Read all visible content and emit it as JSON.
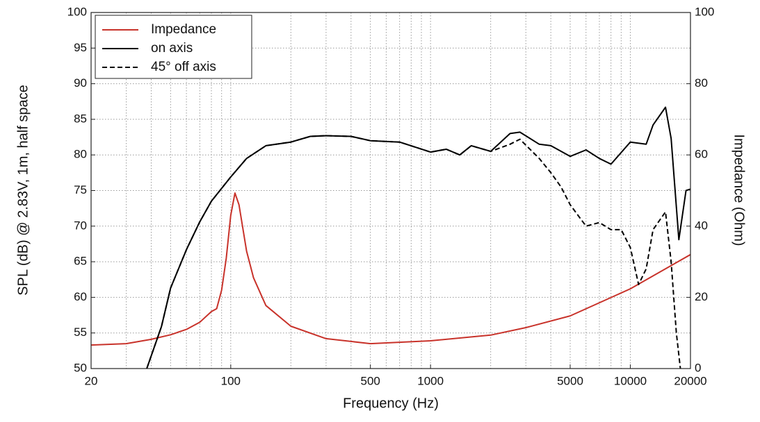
{
  "chart_data": {
    "type": "line",
    "x_label": "Frequency (Hz)",
    "y_label": "SPL (dB) @ 2.83V, 1m, half space",
    "y2_label": "Impedance (Ohm)",
    "x_scale": "log",
    "grid": true,
    "legend": "upper left",
    "xlim": [
      20,
      20000
    ],
    "xticks": [
      20,
      100,
      500,
      1000,
      5000,
      10000,
      20000
    ],
    "xminorticks": [
      30,
      40,
      50,
      60,
      70,
      80,
      90,
      200,
      300,
      400,
      600,
      700,
      800,
      900,
      2000,
      3000,
      4000,
      6000,
      7000,
      8000,
      9000
    ],
    "ylim": [
      50,
      100
    ],
    "yticks": [
      50,
      55,
      60,
      65,
      70,
      75,
      80,
      85,
      90,
      95,
      100
    ],
    "y2lim": [
      0,
      100
    ],
    "y2ticks": [
      0,
      20,
      40,
      60,
      80,
      100
    ],
    "series": [
      {
        "name": "Impedance",
        "color": "#c8322a",
        "dash": "solid",
        "axis": "y2",
        "x": [
          20,
          30,
          40,
          50,
          60,
          70,
          80,
          85,
          90,
          95,
          100,
          105,
          110,
          120,
          130,
          150,
          200,
          300,
          500,
          1000,
          2000,
          3000,
          5000,
          10000,
          20000
        ],
        "values": [
          6.6,
          7,
          8.2,
          9.5,
          11,
          13,
          16,
          16.8,
          22,
          31,
          43,
          49.3,
          46,
          33,
          25.5,
          17.7,
          11.9,
          8.4,
          7,
          7.8,
          9.4,
          11.5,
          14.8,
          22.4,
          32
        ]
      },
      {
        "name": "on axis",
        "color": "#000000",
        "dash": "solid",
        "axis": "y",
        "x": [
          38,
          45,
          50,
          60,
          70,
          80,
          100,
          120,
          150,
          200,
          250,
          300,
          400,
          500,
          700,
          1000,
          1200,
          1400,
          1600,
          2000,
          2500,
          2800,
          3500,
          4000,
          5000,
          6000,
          7000,
          8000,
          10000,
          12000,
          13000,
          15000,
          16000,
          17500,
          19000,
          20000
        ],
        "values": [
          50,
          55.9,
          61.3,
          66.7,
          70.6,
          73.5,
          76.9,
          79.5,
          81.3,
          81.8,
          82.6,
          82.7,
          82.6,
          82,
          81.8,
          80.4,
          80.8,
          80,
          81.3,
          80.5,
          83,
          83.2,
          81.5,
          81.3,
          79.8,
          80.7,
          79.5,
          78.7,
          81.8,
          81.5,
          84.2,
          86.7,
          82.3,
          68.1,
          75,
          75.2
        ]
      },
      {
        "name": "45° off axis",
        "color": "#000000",
        "dash": "dashed",
        "axis": "y",
        "x": [
          38,
          45,
          50,
          60,
          70,
          80,
          100,
          120,
          150,
          200,
          250,
          300,
          400,
          500,
          700,
          1000,
          1200,
          1400,
          1600,
          2000,
          2500,
          2800,
          3500,
          4000,
          4500,
          5000,
          6000,
          7000,
          8000,
          9000,
          10000,
          11000,
          12000,
          13000,
          15000,
          16000,
          17000,
          17800
        ],
        "values": [
          50,
          55.9,
          61.3,
          66.7,
          70.6,
          73.5,
          76.9,
          79.5,
          81.3,
          81.8,
          82.6,
          82.7,
          82.6,
          82,
          81.8,
          80.4,
          80.8,
          80,
          81.3,
          80.5,
          81.5,
          82.2,
          79.5,
          77.5,
          75.5,
          73,
          70,
          70.5,
          69.5,
          69.5,
          67,
          61.8,
          64,
          69.5,
          72,
          65,
          55,
          50
        ]
      }
    ]
  }
}
